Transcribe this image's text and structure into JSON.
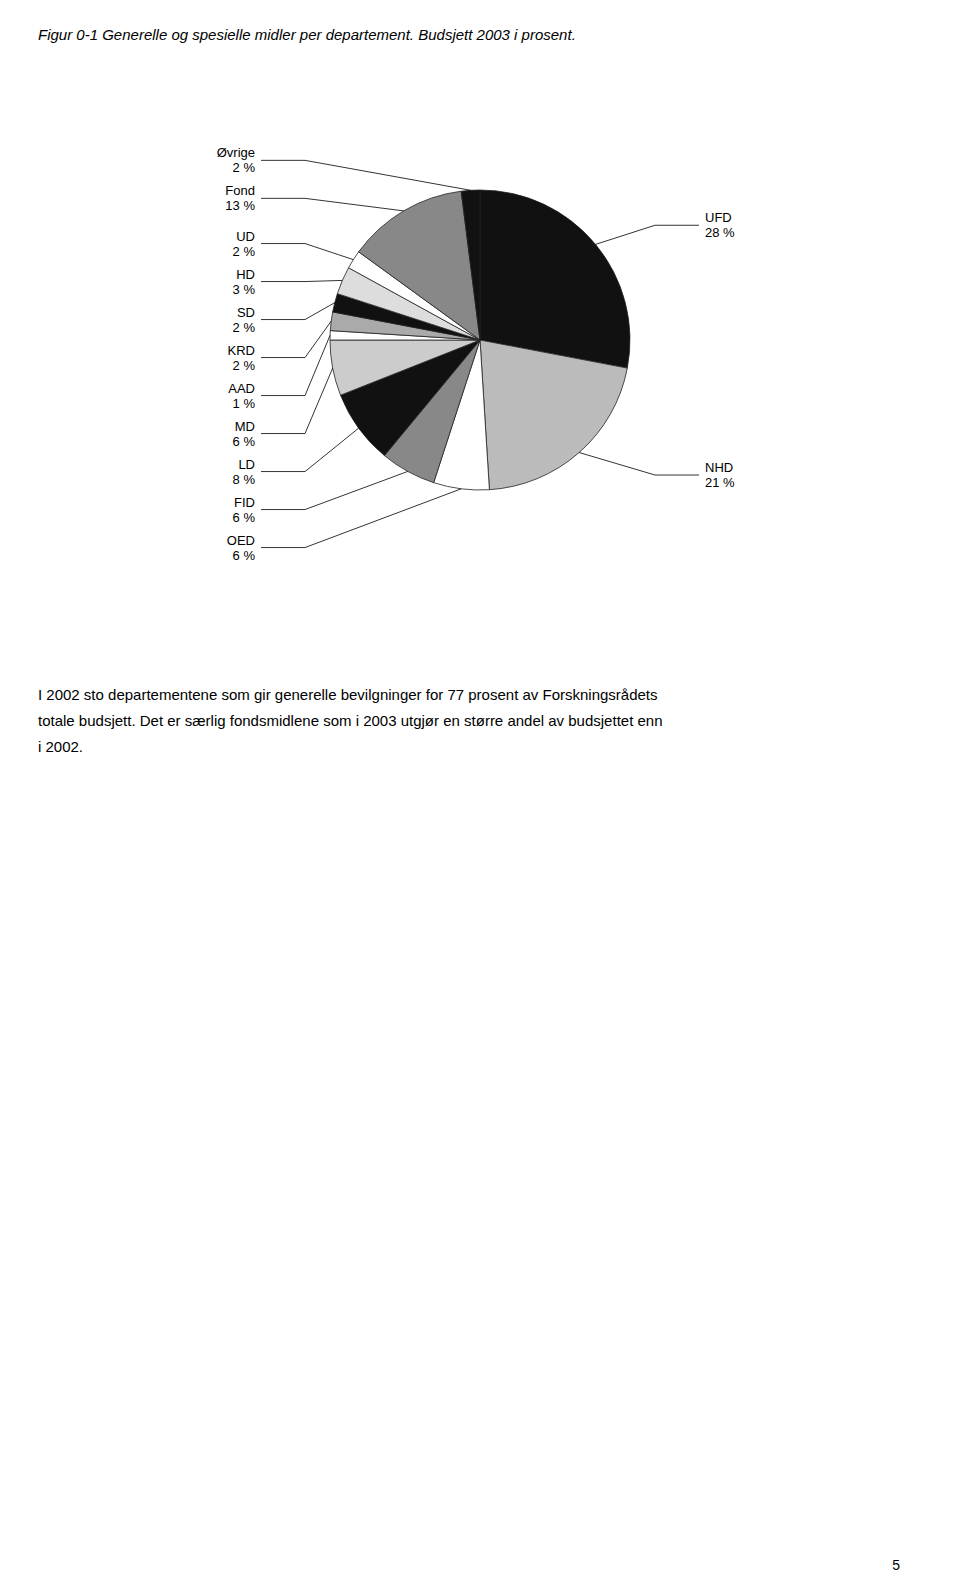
{
  "chart_data": {
    "type": "pie",
    "title": "Figur 0-1 Generelle og spesielle midler per departement. Budsjett 2003 i prosent.",
    "categories": [
      "UFD",
      "NHD",
      "OED",
      "FID",
      "LD",
      "MD",
      "AAD",
      "KRD",
      "SD",
      "HD",
      "UD",
      "Fond",
      "Øvrige"
    ],
    "values": [
      28,
      21,
      6,
      6,
      8,
      6,
      1,
      2,
      2,
      3,
      2,
      13,
      2
    ],
    "value_labels": [
      "28 %",
      "21 %",
      "6 %",
      "6 %",
      "8 %",
      "6 %",
      "1 %",
      "2 %",
      "2 %",
      "3 %",
      "2 %",
      "13 %",
      "2 %"
    ],
    "colors": [
      "#111111",
      "#bbbbbb",
      "#ffffff",
      "#888888",
      "#111111",
      "#cccccc",
      "#ffffff",
      "#aaaaaa",
      "#111111",
      "#dddddd",
      "#ffffff",
      "#888888",
      "#111111"
    ],
    "data_labels": true,
    "annotations": [
      "I 2002 sto departementene som gir generelle bevilgninger for 77 prosent av Forskningsrådets",
      "totale budsjett. Det er særlig fondsmidlene som i 2003 utgjør en større andel av budsjettet enn",
      "i 2002.",
      "5"
    ]
  }
}
